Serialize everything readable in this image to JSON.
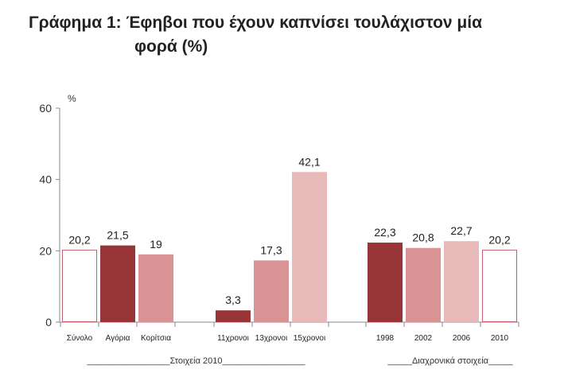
{
  "title": {
    "prefix": "Γράφημα 1: ",
    "line1": "Έφηβοι που έχουν καπνίσει τουλάχιστον μία",
    "line2": "φορά (%)"
  },
  "chart_data": {
    "type": "bar",
    "ylabel": "%",
    "ylim": [
      0,
      60
    ],
    "yticks": [
      0,
      20,
      40,
      60
    ],
    "categories": [
      "Σύνολο",
      "Αγόρια",
      "Κορίτσια",
      "11χρονοι",
      "13χρονοι",
      "15χρονοι",
      "1998",
      "2002",
      "2006",
      "2010"
    ],
    "values": [
      20.2,
      21.5,
      19,
      3.3,
      17.3,
      42.1,
      22.3,
      20.8,
      22.7,
      20.2
    ],
    "value_labels": [
      "20,2",
      "21,5",
      "19",
      "3,3",
      "17,3",
      "42,1",
      "22,3",
      "20,8",
      "22,7",
      "20,2"
    ],
    "groups": [
      {
        "label": "_________________Στοιχεία 2010_________________"
      },
      {
        "label": "_____Διαχρονικά στοιχεία_____"
      }
    ],
    "colors": [
      "#ffffff",
      "#983539",
      "#d99394",
      "#983539",
      "#d99394",
      "#e8b9b9",
      "#983539",
      "#d99394",
      "#e8b9b9",
      "#ffffff"
    ],
    "outline_color": "#c06070",
    "grid": false
  }
}
